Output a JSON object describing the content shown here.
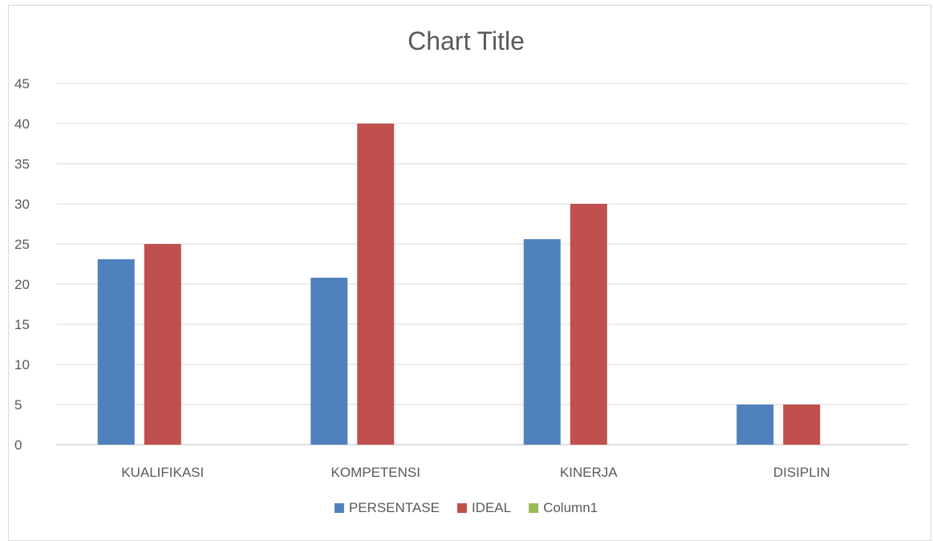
{
  "chart_data": {
    "type": "bar",
    "title": "Chart Title",
    "categories": [
      "KUALIFIKASI",
      "KOMPETENSI",
      "KINERJA",
      "DISIPLIN"
    ],
    "series": [
      {
        "name": "PERSENTASE",
        "color": "#4F81BD",
        "values": [
          23.1,
          20.8,
          25.6,
          5.0
        ]
      },
      {
        "name": "IDEAL",
        "color": "#C0504D",
        "values": [
          25,
          40,
          30,
          5
        ]
      },
      {
        "name": "Column1",
        "color": "#9BBB59",
        "values": [
          0,
          0,
          0,
          0
        ]
      }
    ],
    "ylim": [
      0,
      45
    ],
    "yticks": [
      0,
      5,
      10,
      15,
      20,
      25,
      30,
      35,
      40,
      45
    ],
    "grid": true,
    "legend_position": "bottom"
  }
}
